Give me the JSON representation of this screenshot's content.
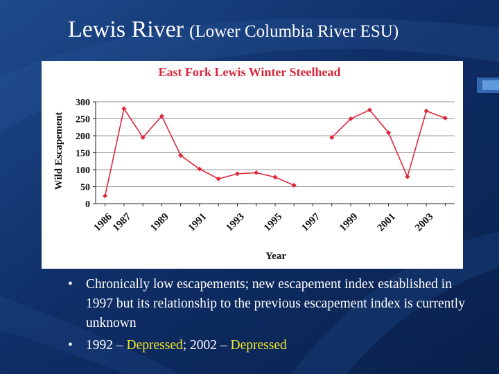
{
  "slide": {
    "title_main": "Lewis River",
    "title_sub": "(Lower Columbia River ESU)"
  },
  "colors": {
    "background": "#0d2a5e",
    "text": "#ffffff",
    "highlight": "#f2e629",
    "chart_title": "#d8263a",
    "series": "#e0283c",
    "axis_text": "#111111",
    "chart_bg": "#ffffff"
  },
  "chart_data": {
    "type": "line",
    "title": "East Fork Lewis Winter Steelhead",
    "xlabel": "Year",
    "ylabel": "Wild Escapement",
    "ylim": [
      0,
      300
    ],
    "yticks": [
      0,
      50,
      100,
      150,
      200,
      250,
      300
    ],
    "xlim": [
      1985.5,
      2004.5
    ],
    "xtick_labels": [
      1986,
      1987,
      1989,
      1991,
      1993,
      1995,
      1997,
      1999,
      2001,
      2003
    ],
    "grid": true,
    "series": [
      {
        "name": "Wild Escapement",
        "points": [
          {
            "x": 1986,
            "y": 23
          },
          {
            "x": 1987,
            "y": 280
          },
          {
            "x": 1988,
            "y": 195
          },
          {
            "x": 1989,
            "y": 258
          },
          {
            "x": 1990,
            "y": 142
          },
          {
            "x": 1991,
            "y": 102
          },
          {
            "x": 1992,
            "y": 73
          },
          {
            "x": 1993,
            "y": 88
          },
          {
            "x": 1994,
            "y": 91
          },
          {
            "x": 1995,
            "y": 78
          },
          {
            "x": 1996,
            "y": 54
          },
          {
            "x": 1998,
            "y": 195
          },
          {
            "x": 1999,
            "y": 250
          },
          {
            "x": 2000,
            "y": 276
          },
          {
            "x": 2001,
            "y": 209
          },
          {
            "x": 2002,
            "y": 79
          },
          {
            "x": 2003,
            "y": 273
          },
          {
            "x": 2004,
            "y": 252
          }
        ]
      }
    ]
  },
  "bullets": [
    {
      "mark": "•",
      "text": "Chronically low escapements; new escapement index established in 1997 but its relationship to the previous escapement index is currently unknown"
    },
    {
      "mark": "•",
      "part1": "1992 – ",
      "part2": "Depressed",
      "part3": "; 2002 – ",
      "part4": "Depressed"
    }
  ]
}
